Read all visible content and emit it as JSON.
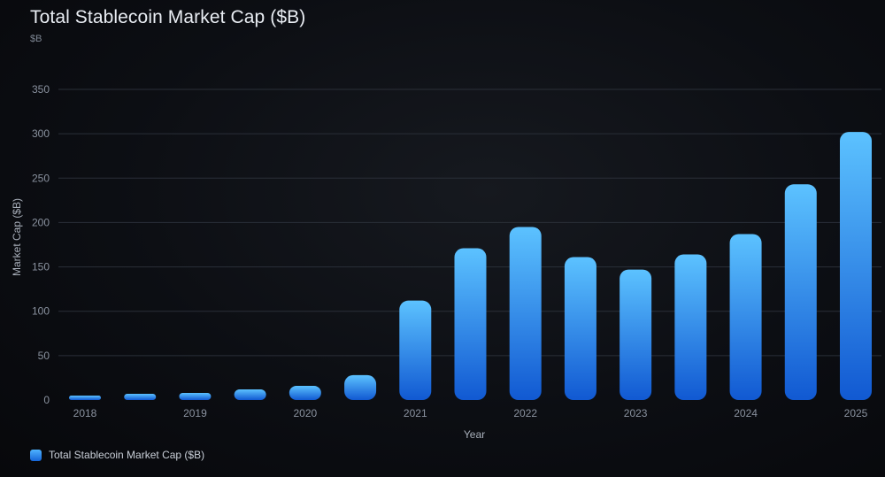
{
  "chart_data": {
    "type": "bar",
    "title": "Total Stablecoin Market Cap ($B)",
    "subtitle": "$B",
    "xlabel": "Year",
    "ylabel": "Market Cap ($B)",
    "ylim": [
      0,
      350
    ],
    "yticks": [
      0,
      50,
      100,
      150,
      200,
      250,
      300,
      350
    ],
    "grid": true,
    "legend_position": "bottom-left",
    "x_tick_labels": [
      "2018",
      "2019",
      "2020",
      "2021",
      "2022",
      "2023",
      "2024",
      "2025"
    ],
    "categories": [
      "2018",
      "2018.5",
      "2019",
      "2019.5",
      "2020",
      "2020.5",
      "2021",
      "2021.5",
      "2022",
      "2022.5",
      "2023",
      "2023.5",
      "2024",
      "2024.5",
      "2025"
    ],
    "series": [
      {
        "name": "Total Stablecoin Market Cap ($B)",
        "values": [
          3,
          7,
          8,
          12,
          16,
          28,
          112,
          171,
          195,
          161,
          147,
          164,
          187,
          243,
          302
        ]
      }
    ],
    "colors": {
      "bar_top": "#5cc2ff",
      "bar_bottom": "#1159d2",
      "grid": "#2a2f38"
    }
  }
}
